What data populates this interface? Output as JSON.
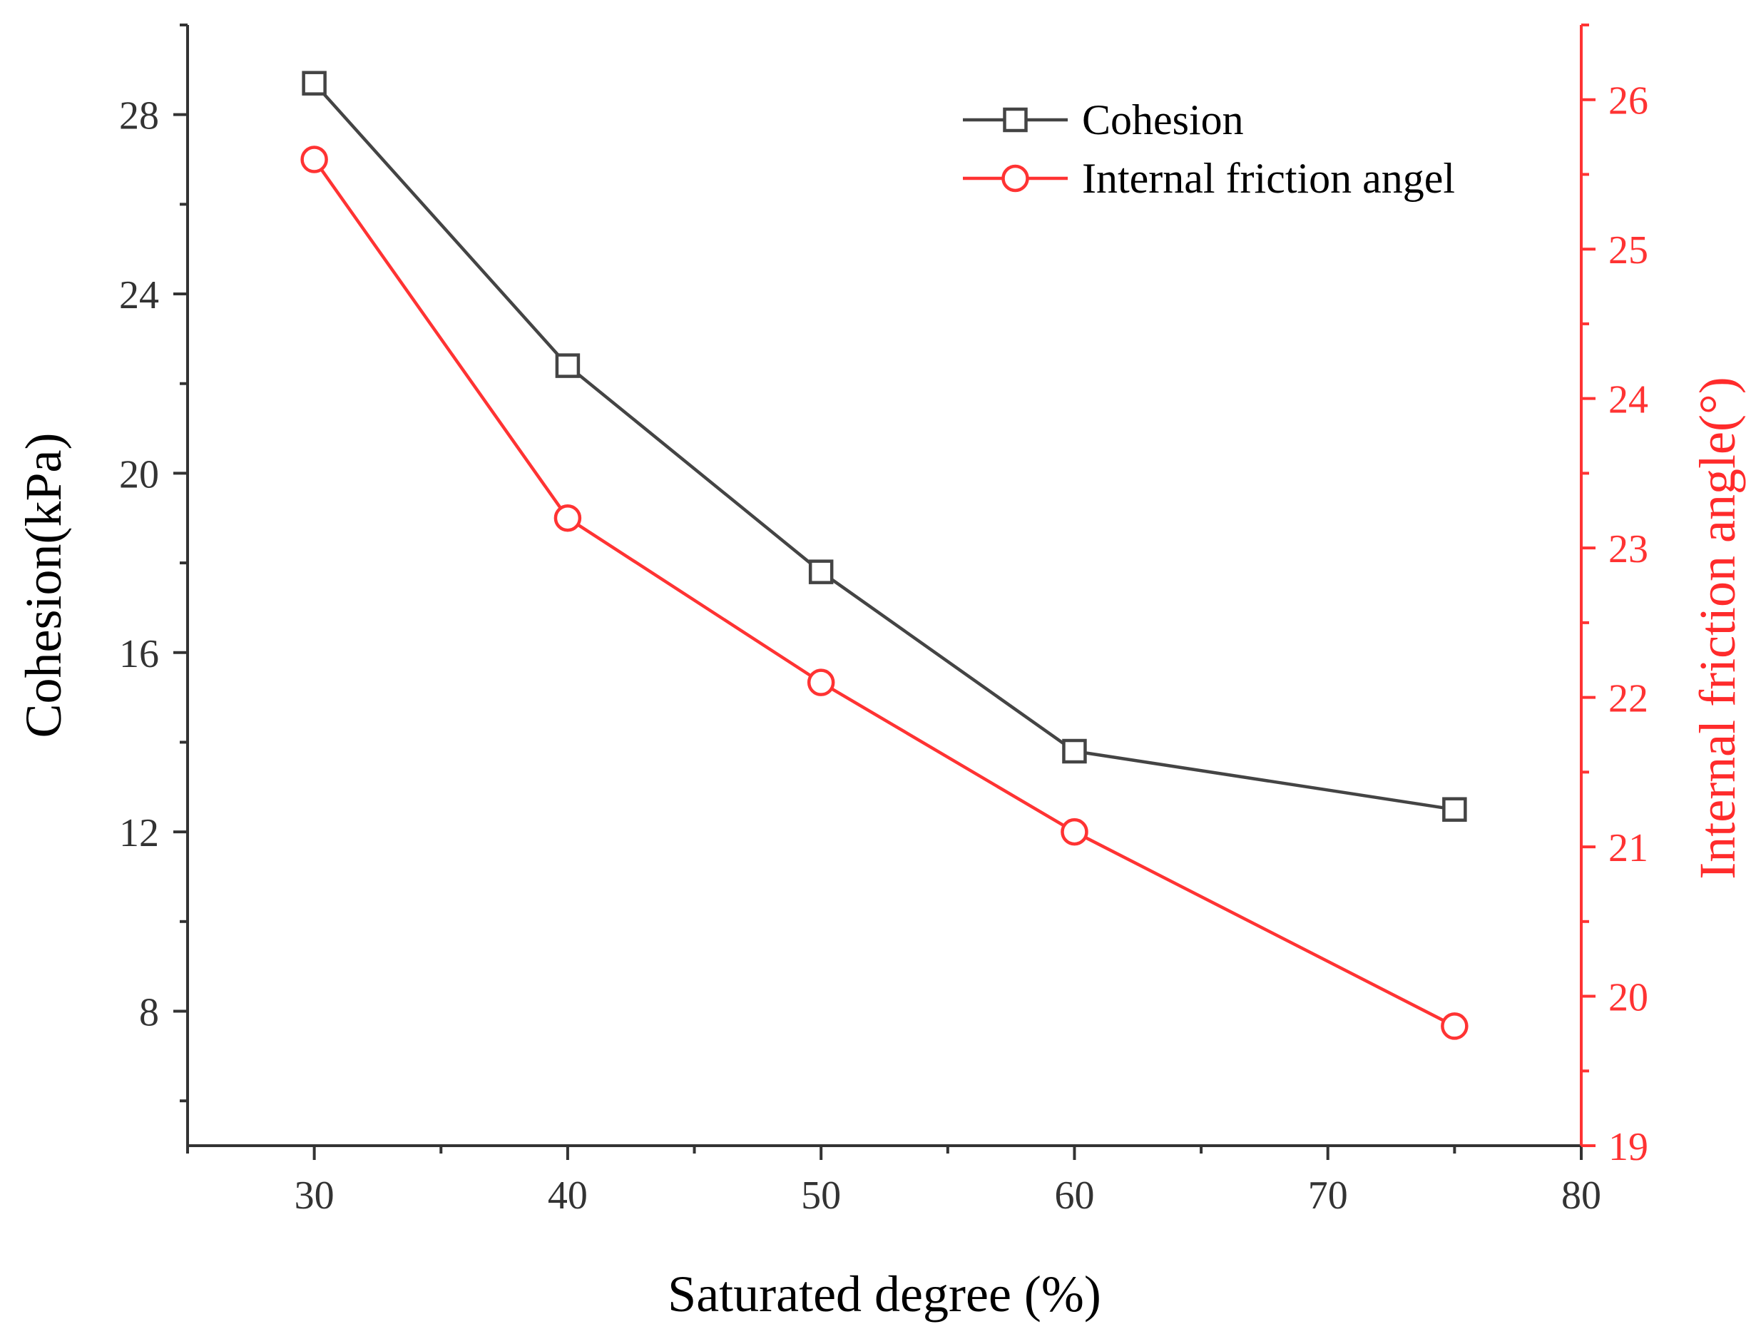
{
  "chart_data": {
    "type": "line",
    "xlabel": "Saturated degree (%)",
    "ylabel_left": "Cohesion(kPa)",
    "ylabel_right": "Internal friction angle(°)",
    "xlim": [
      25,
      80
    ],
    "ylim_left": [
      5,
      30
    ],
    "ylim_right": [
      19,
      26.5
    ],
    "x_ticks": [
      30,
      40,
      50,
      60,
      70,
      80
    ],
    "y_left_ticks": [
      8,
      12,
      16,
      20,
      24,
      28
    ],
    "y_right_ticks": [
      19,
      20,
      21,
      22,
      23,
      24,
      25,
      26
    ],
    "x": [
      30,
      40,
      50,
      60,
      75
    ],
    "series": [
      {
        "name": "Cohesion",
        "axis": "left",
        "marker": "square",
        "color": "#444444",
        "values": [
          28.7,
          22.4,
          17.8,
          13.8,
          12.5
        ]
      },
      {
        "name": "Internal friction angel",
        "axis": "right",
        "marker": "circle",
        "color": "#ff3333",
        "values": [
          25.6,
          23.2,
          22.1,
          21.1,
          19.8
        ]
      }
    ],
    "legend_position": "top-right"
  }
}
